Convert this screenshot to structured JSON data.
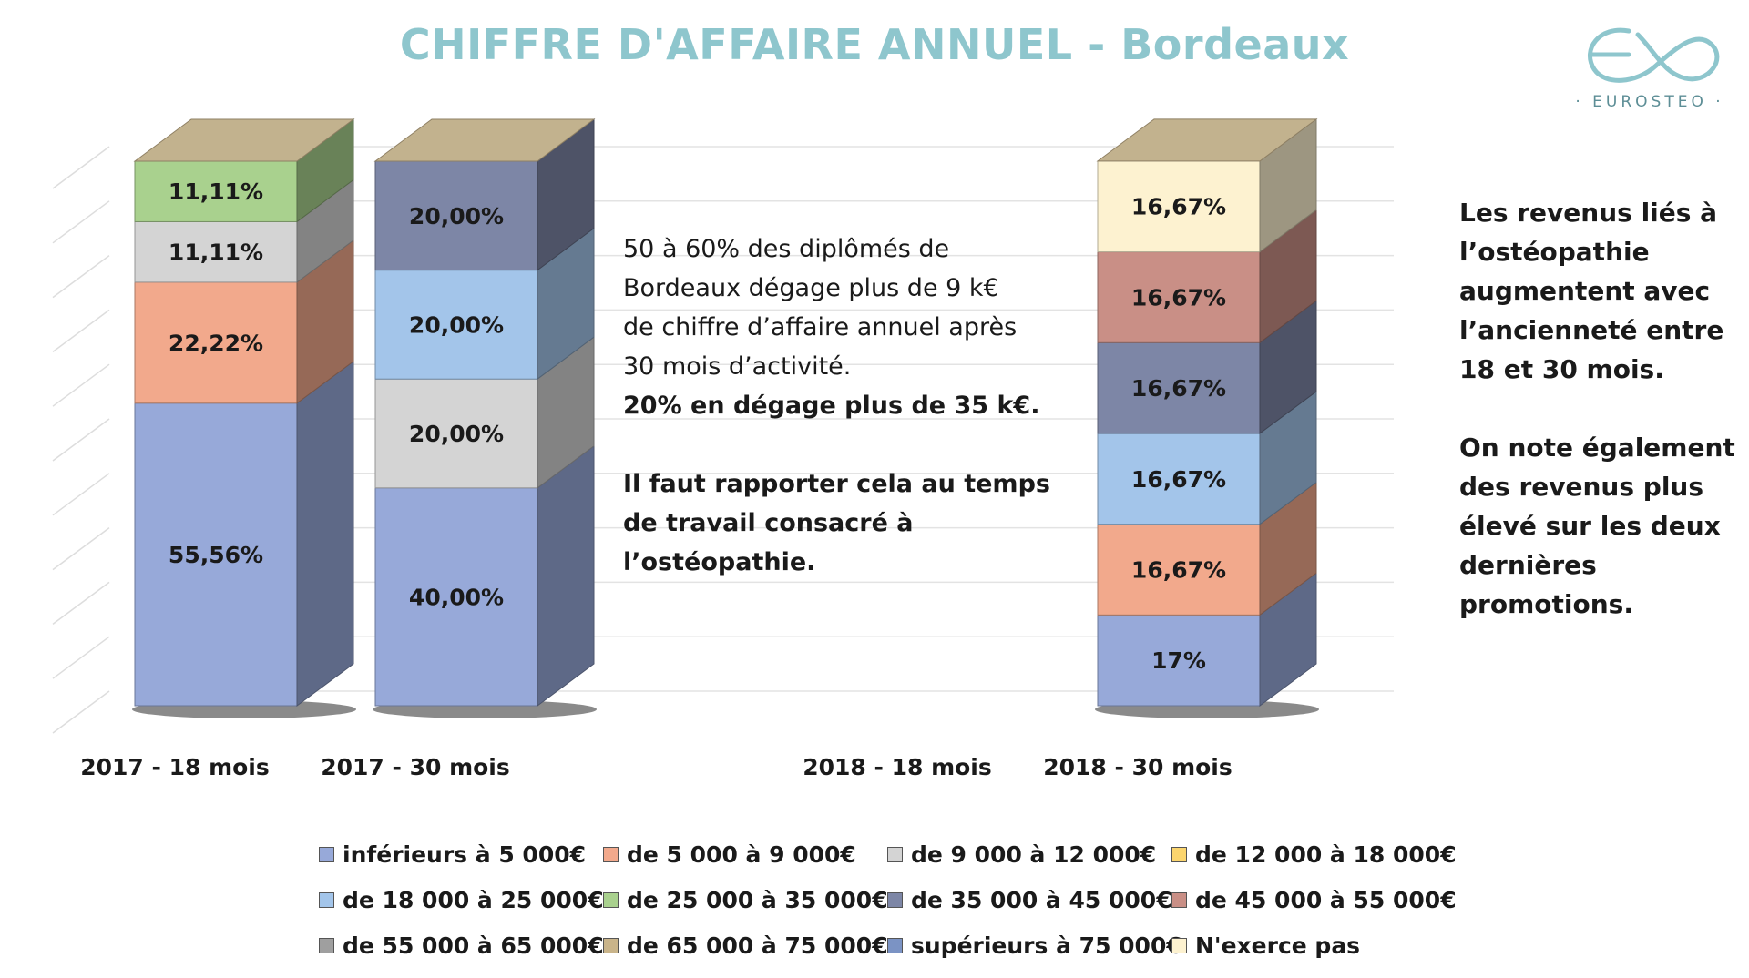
{
  "page": {
    "title": "CHIFFRE D'AFFAIRE ANNUEL - Bordeaux",
    "logo_text": "· EUROSTEO ·"
  },
  "text_blocks": {
    "middle": {
      "line1": "50 à 60% des diplômés de",
      "line2": "Bordeaux dégage plus de 9 k€",
      "line3": "de chiffre d’affaire annuel après",
      "line4": "30 mois d’activité.",
      "line5": "20% en dégage plus de 35 k€.",
      "line6": "Il faut rapporter cela au temps",
      "line7": "de travail consacré à",
      "line8": "l’ostéopathie."
    },
    "right": {
      "line1": "Les revenus liés à",
      "line2": "l’ostéopathie",
      "line3": "augmentent avec",
      "line4": "l’ancienneté entre",
      "line5": "18 et 30 mois.",
      "line6": "On note également",
      "line7": "des revenus plus",
      "line8": "élevé sur les deux",
      "line9": "dernières",
      "line10": "promotions."
    }
  },
  "chart_data": {
    "type": "bar",
    "stacked": true,
    "three_d": true,
    "title": "CHIFFRE D'AFFAIRE ANNUEL - Bordeaux",
    "categories": [
      "2017 - 18 mois",
      "2017 - 30 mois",
      "2018 - 18 mois",
      "2018 - 30 mois"
    ],
    "ylim": [
      0,
      100
    ],
    "grid": true,
    "legend_position": "bottom",
    "legend": [
      {
        "label": "inférieurs à 5 000€",
        "color": "#97a9d9"
      },
      {
        "label": "de 5 000 à 9 000€",
        "color": "#f2a98c"
      },
      {
        "label": "de 9 000 à 12 000€",
        "color": "#d4d4d4"
      },
      {
        "label": "de 12 000 à 18 000€",
        "color": "#fbd56e"
      },
      {
        "label": "de 18 000 à 25 000€",
        "color": "#a3c5ea"
      },
      {
        "label": "de 25 000 à 35 000€",
        "color": "#a9d18e"
      },
      {
        "label": "de 35 000 à 45 000€",
        "color": "#7d86a6"
      },
      {
        "label": "de 45 000 à 55 000€",
        "color": "#c98f86"
      },
      {
        "label": "de 55 000 à 65 000€",
        "color": "#9f9f9f"
      },
      {
        "label": "de 65 000 à 75 000€",
        "color": "#c9b48a"
      },
      {
        "label": "supérieurs à 75 000€",
        "color": "#7b93c4"
      },
      {
        "label": "N'exerce pas",
        "color": "#fdf2d0"
      }
    ],
    "bars": [
      {
        "category": "2017 - 18 mois",
        "segments": [
          {
            "series": "inférieurs à 5 000€",
            "value": 55.56,
            "label": "55,56%"
          },
          {
            "series": "de 5 000 à 9 000€",
            "value": 22.22,
            "label": "22,22%"
          },
          {
            "series": "de 9 000 à 12 000€",
            "value": 11.11,
            "label": "11,11%"
          },
          {
            "series": "de 25 000 à 35 000€",
            "value": 11.11,
            "label": "11,11%"
          }
        ]
      },
      {
        "category": "2017 - 30 mois",
        "segments": [
          {
            "series": "inférieurs à 5 000€",
            "value": 40.0,
            "label": "40,00%"
          },
          {
            "series": "de 9 000 à 12 000€",
            "value": 20.0,
            "label": "20,00%"
          },
          {
            "series": "de 18 000 à 25 000€",
            "value": 20.0,
            "label": "20,00%"
          },
          {
            "series": "de 35 000 à 45 000€",
            "value": 20.0,
            "label": "20,00%"
          }
        ]
      },
      {
        "category": "2018 - 18 mois",
        "segments": []
      },
      {
        "category": "2018 - 30 mois",
        "segments": [
          {
            "series": "inférieurs à 5 000€",
            "value": 16.67,
            "label": "17%"
          },
          {
            "series": "de 5 000 à 9 000€",
            "value": 16.67,
            "label": "16,67%"
          },
          {
            "series": "de 18 000 à 25 000€",
            "value": 16.67,
            "label": "16,67%"
          },
          {
            "series": "de 35 000 à 45 000€",
            "value": 16.67,
            "label": "16,67%"
          },
          {
            "series": "de 45 000 à 55 000€",
            "value": 16.67,
            "label": "16,67%"
          },
          {
            "series": "N'exerce pas",
            "value": 16.67,
            "label": "16,67%"
          }
        ]
      }
    ]
  }
}
